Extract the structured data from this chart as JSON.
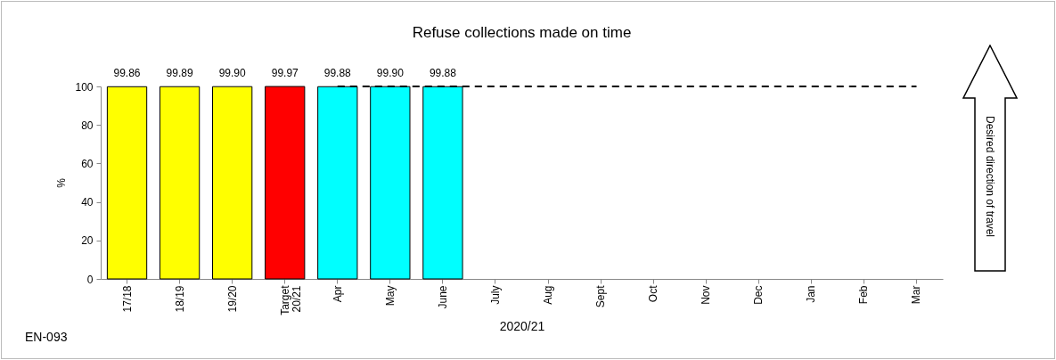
{
  "chart_data": {
    "type": "bar",
    "title": "Refuse collections made on time",
    "xlabel": "2020/21",
    "ylabel": "%",
    "categories": [
      "17/18",
      "18/19",
      "19/20",
      "Target 20/21",
      "Apr",
      "May",
      "June",
      "July",
      "Aug",
      "Sept",
      "Oct",
      "Nov",
      "Dec",
      "Jan",
      "Feb",
      "Mar"
    ],
    "ylim": [
      0,
      100
    ],
    "yticks": [
      0,
      20,
      40,
      60,
      80,
      100
    ],
    "grid": false,
    "series": [
      {
        "colors": [
          "#ffff00",
          "#ffff00",
          "#ffff00",
          "#ff0000",
          "#00ffff",
          "#00ffff",
          "#00ffff",
          null,
          null,
          null,
          null,
          null,
          null,
          null,
          null,
          null
        ],
        "values": [
          99.86,
          99.89,
          99.9,
          99.97,
          99.88,
          99.9,
          99.88,
          null,
          null,
          null,
          null,
          null,
          null,
          null,
          null,
          null
        ],
        "value_labels": [
          "99.86",
          "99.89",
          "99.90",
          "99.97",
          "99.88",
          "99.90",
          "99.88",
          null,
          null,
          null,
          null,
          null,
          null,
          null,
          null,
          null
        ]
      },
      {
        "type": "line",
        "color": "#000000",
        "line_style": "dashed",
        "values": [
          null,
          null,
          null,
          null,
          100,
          100,
          100,
          100,
          100,
          100,
          100,
          100,
          100,
          100,
          100,
          100
        ]
      }
    ],
    "annotations": [
      "EN-093",
      "Desired direction of travel"
    ]
  }
}
